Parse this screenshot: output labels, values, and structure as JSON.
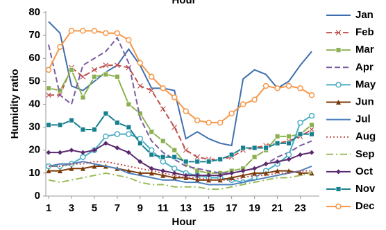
{
  "chart_data": {
    "type": "line",
    "title": "Hour",
    "x_label": "Hour",
    "y_label": "Humidity ratio",
    "x": [
      1,
      2,
      3,
      4,
      5,
      6,
      7,
      8,
      9,
      10,
      11,
      12,
      13,
      14,
      15,
      16,
      17,
      18,
      19,
      20,
      21,
      22,
      23,
      24
    ],
    "xlim": [
      1,
      24
    ],
    "xticks": [
      1,
      3,
      5,
      7,
      9,
      11,
      13,
      15,
      17,
      19,
      21,
      23
    ],
    "ylim": [
      0,
      80
    ],
    "yticks": [
      0,
      10,
      20,
      30,
      40,
      50,
      60,
      70,
      80
    ],
    "grid": false,
    "legend": "right",
    "series": [
      {
        "name": "Jan",
        "color": "#3f6fae",
        "dash": "none",
        "marker": "none",
        "values": [
          76,
          71,
          48,
          46,
          50,
          54,
          57,
          64,
          57,
          47,
          47,
          46,
          25,
          28,
          25,
          23,
          22,
          51,
          55,
          53,
          47,
          50,
          57,
          63
        ]
      },
      {
        "name": "Feb",
        "color": "#c0504d",
        "dash": "8 4",
        "marker": "x",
        "values": [
          44,
          44,
          56,
          52,
          55,
          57,
          57,
          56,
          48,
          46,
          38,
          30,
          20,
          17,
          16,
          16,
          17,
          20,
          21,
          22,
          23,
          24,
          26,
          29
        ]
      },
      {
        "name": "Mar",
        "color": "#8cb050",
        "dash": "none",
        "marker": "square",
        "values": [
          47,
          46,
          55,
          43,
          52,
          53,
          52,
          40,
          36,
          28,
          24,
          20,
          14,
          11,
          10,
          10,
          11,
          12,
          17,
          20,
          26,
          26,
          27,
          31
        ]
      },
      {
        "name": "Apr",
        "color": "#7a5ca0",
        "dash": "8 4",
        "marker": "none",
        "values": [
          66,
          44,
          40,
          57,
          60,
          63,
          69,
          58,
          34,
          24,
          19,
          16,
          13,
          12,
          11,
          10,
          10,
          11,
          12,
          14,
          17,
          19,
          22,
          24
        ]
      },
      {
        "name": "May",
        "color": "#4bacc6",
        "dash": "none",
        "marker": "circle",
        "values": [
          13,
          13,
          14,
          17,
          20,
          26,
          27,
          27,
          25,
          20,
          15,
          12,
          10,
          9,
          8,
          8,
          7,
          6,
          8,
          11,
          14,
          18,
          32,
          35
        ]
      },
      {
        "name": "Jun",
        "color": "#7a3a08",
        "dash": "none",
        "marker": "triangle",
        "values": [
          11,
          11,
          12,
          12,
          13,
          13,
          12,
          11,
          10,
          10,
          9,
          8,
          8,
          7,
          7,
          7,
          8,
          9,
          10,
          10,
          11,
          11,
          10,
          10
        ]
      },
      {
        "name": "Jul",
        "color": "#4f81bd",
        "dash": "none",
        "marker": "none",
        "values": [
          13,
          14,
          14,
          15,
          14,
          13,
          12,
          10,
          9,
          8,
          7,
          7,
          6,
          6,
          5,
          5,
          5,
          6,
          7,
          8,
          9,
          10,
          11,
          13
        ]
      },
      {
        "name": "Aug",
        "color": "#c0504d",
        "dash": "2 3",
        "marker": "none",
        "values": [
          13,
          13,
          14,
          14,
          15,
          15,
          14,
          13,
          12,
          11,
          10,
          9,
          8,
          8,
          7,
          7,
          7,
          8,
          9,
          9,
          10,
          10,
          11,
          11
        ]
      },
      {
        "name": "Sep",
        "color": "#9bbb59",
        "dash": "10 4 2 4",
        "marker": "none",
        "values": [
          7,
          6,
          7,
          8,
          9,
          10,
          9,
          8,
          6,
          5,
          5,
          4,
          4,
          4,
          3,
          3,
          4,
          5,
          6,
          7,
          8,
          8,
          9,
          10
        ]
      },
      {
        "name": "Oct",
        "color": "#5b2a6e",
        "dash": "none",
        "marker": "diamond",
        "values": [
          19,
          19,
          20,
          19,
          20,
          23,
          21,
          19,
          15,
          12,
          11,
          10,
          9,
          9,
          9,
          9,
          10,
          11,
          12,
          14,
          15,
          16,
          18,
          19
        ]
      },
      {
        "name": "Nov",
        "color": "#17808f",
        "dash": "none",
        "marker": "square",
        "values": [
          31,
          31,
          33,
          29,
          29,
          36,
          32,
          30,
          23,
          18,
          17,
          17,
          15,
          15,
          15,
          16,
          18,
          21,
          21,
          21,
          23,
          23,
          27,
          27
        ]
      },
      {
        "name": "Dec",
        "color": "#f79646",
        "dash": "none",
        "marker": "circle",
        "values": [
          55,
          65,
          72,
          72,
          72,
          71,
          71,
          68,
          58,
          52,
          47,
          43,
          37,
          33,
          32,
          32,
          36,
          40,
          42,
          48,
          47,
          48,
          47,
          44
        ]
      }
    ]
  }
}
